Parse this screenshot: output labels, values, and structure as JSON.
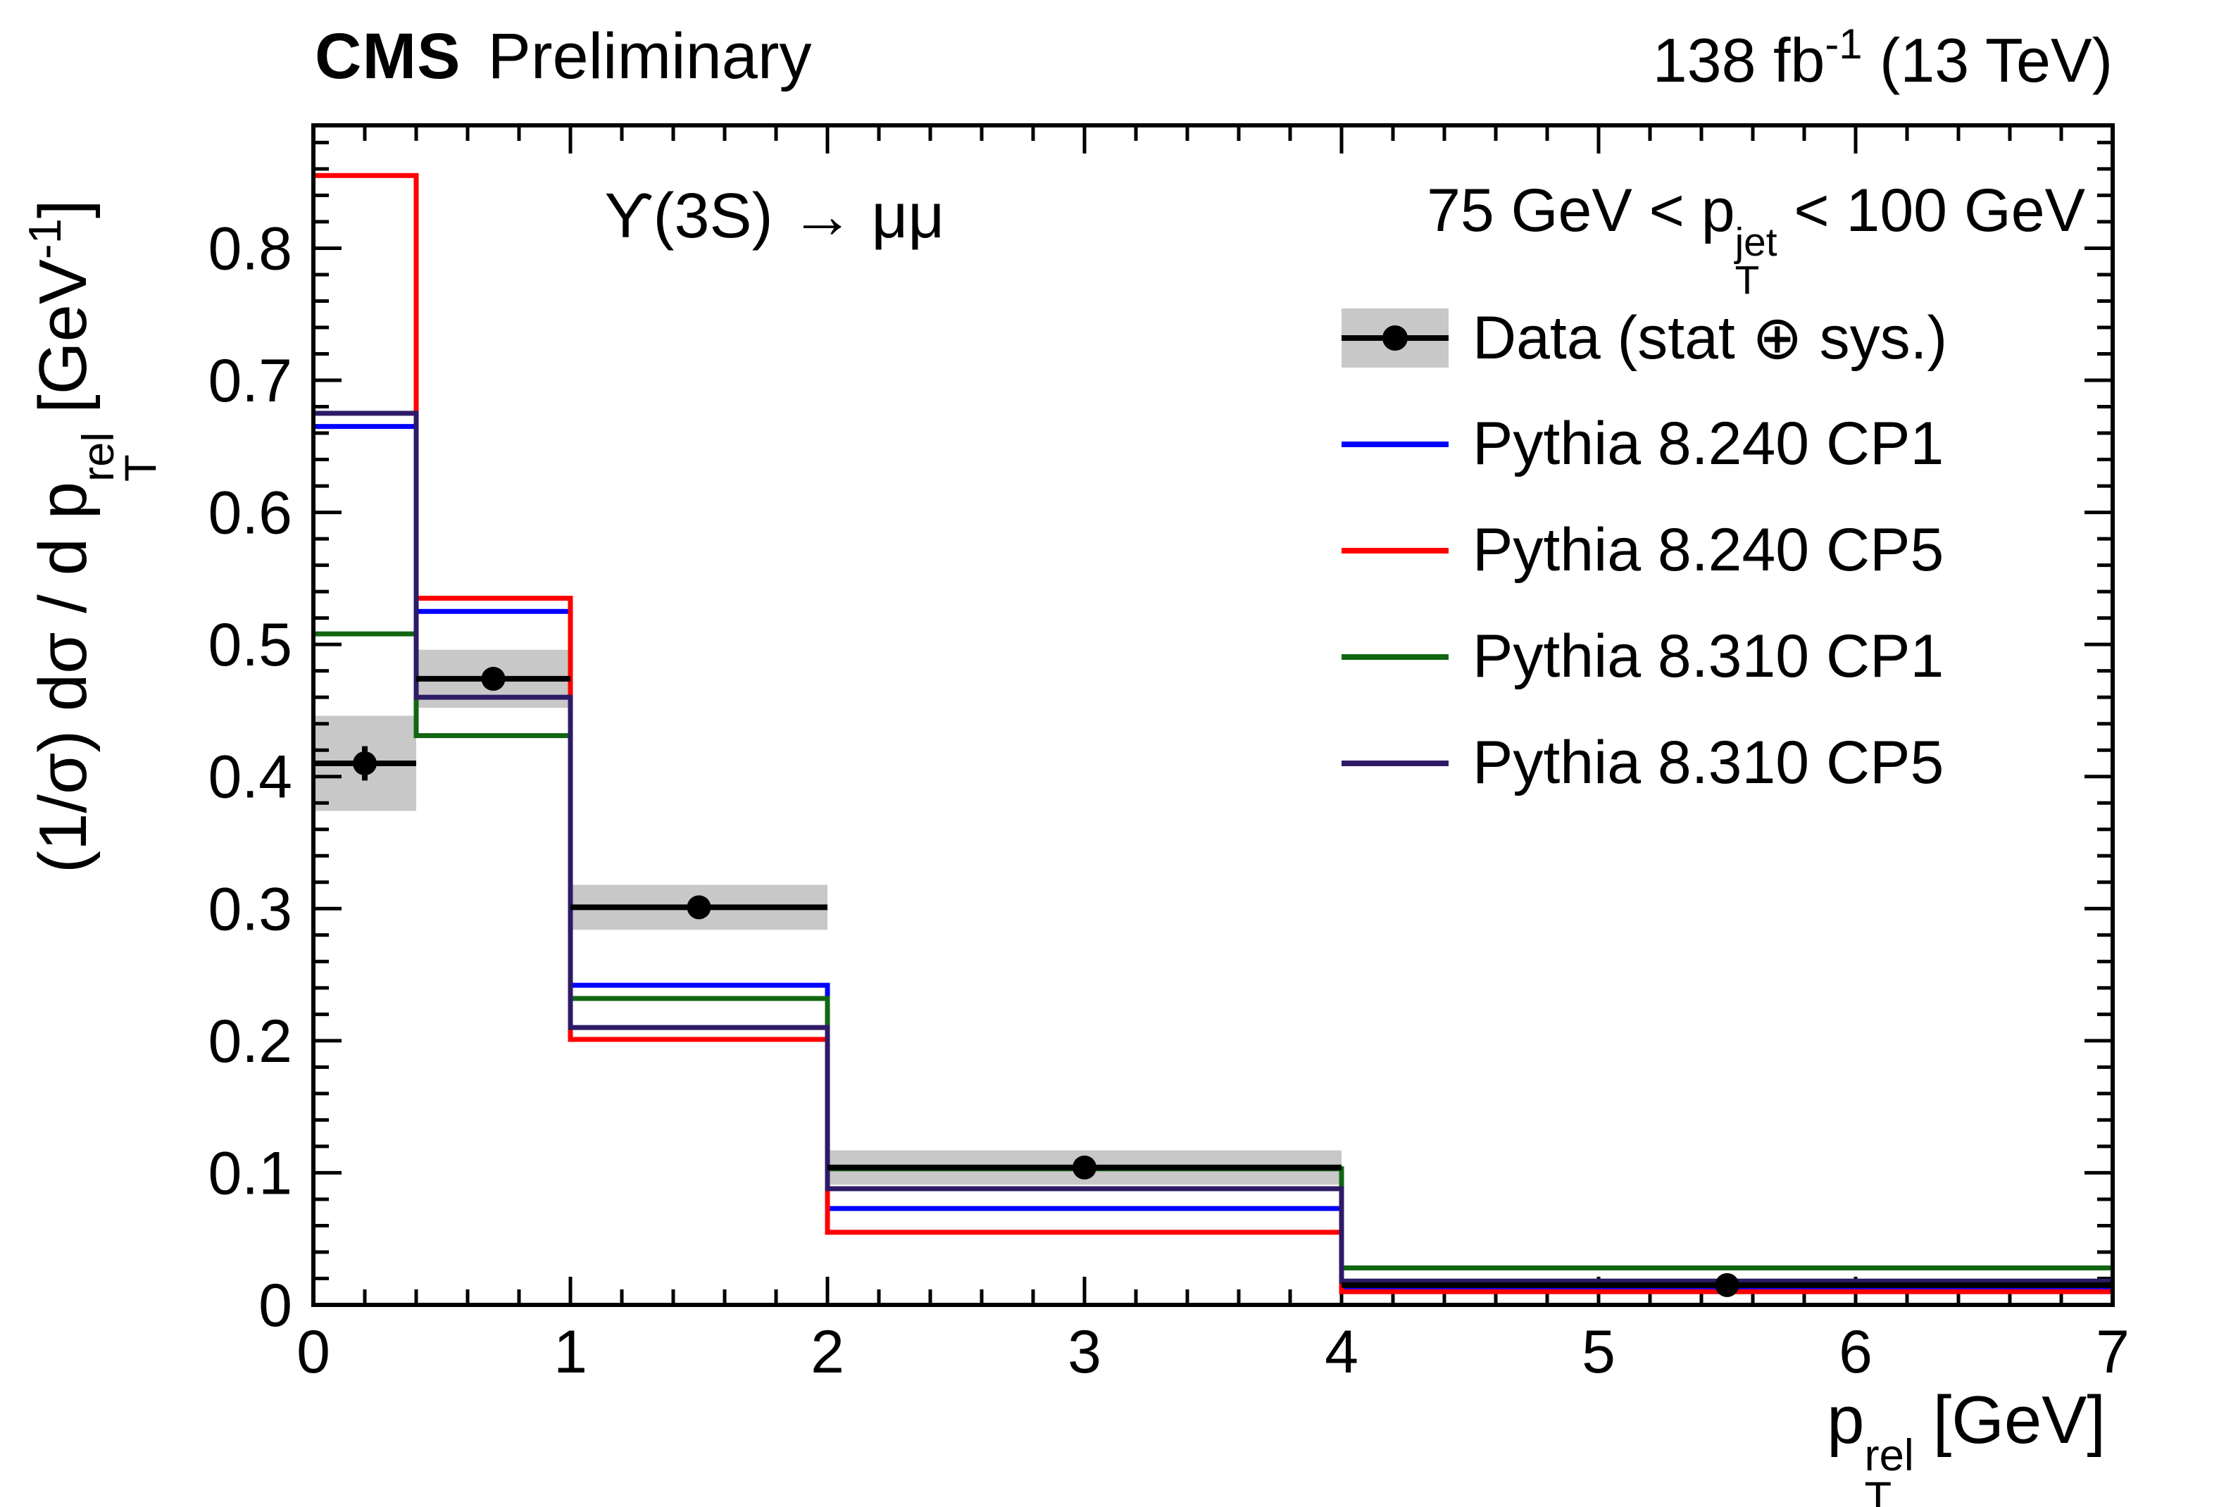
{
  "header": {
    "experiment": "CMS",
    "label": "Preliminary",
    "lumi_pre": "138 fb",
    "lumi_sup": "-1",
    "lumi_post": " (13 TeV)"
  },
  "annotations": {
    "decay": "ϒ(3S) → μμ",
    "jet_pre": "75 GeV < p",
    "jet_sup": "jet",
    "jet_sub": "T",
    "jet_post": " < 100 GeV"
  },
  "legend": {
    "items": [
      {
        "label": "Data (stat ⊕ sys.)",
        "type": "data",
        "color": "#000000",
        "band_color": "#c8c8c8"
      },
      {
        "label": "Pythia 8.240 CP1",
        "type": "line",
        "color": "#0000ff"
      },
      {
        "label": "Pythia 8.240 CP5",
        "type": "line",
        "color": "#ff0000"
      },
      {
        "label": "Pythia 8.310 CP1",
        "type": "line",
        "color": "#116611"
      },
      {
        "label": "Pythia 8.310 CP5",
        "type": "line",
        "color": "#2e1a66"
      }
    ]
  },
  "axes": {
    "x_pre": "p",
    "x_sup": "rel",
    "x_sub": "T",
    "x_post": " [GeV]",
    "y_pre": "(1/σ) dσ / d p",
    "y_sup": "rel",
    "y_sub": "T",
    "y_mid": " [GeV",
    "y_exp": "-1",
    "y_end": "]"
  },
  "chart_data": {
    "type": "line",
    "style": "step-histogram",
    "title": "",
    "xlabel": "pT^rel [GeV]",
    "ylabel": "(1/sigma) dsigma / d pT^rel [GeV^-1]",
    "xlim": [
      0,
      7
    ],
    "ylim": [
      0,
      0.893
    ],
    "xticks": [
      0,
      1,
      2,
      3,
      4,
      5,
      6,
      7
    ],
    "yticks": [
      0,
      0.1,
      0.2,
      0.3,
      0.4,
      0.5,
      0.6,
      0.7,
      0.8
    ],
    "x_minor_step": 0.2,
    "y_minor_step": 0.02,
    "grid": false,
    "legend_position": "top-right",
    "bin_edges": [
      0,
      0.4,
      1,
      2,
      4,
      7
    ],
    "band_color": "#c8c8c8",
    "data_series": {
      "name": "Data (stat ⊕ sys.)",
      "x": [
        0.2,
        0.7,
        1.5,
        3.0,
        5.5
      ],
      "y": [
        0.41,
        0.474,
        0.301,
        0.104,
        0.015
      ],
      "stat_err": [
        0.013,
        0.008,
        0.006,
        0.004,
        0.002
      ],
      "sys_band": [
        0.036,
        0.022,
        0.017,
        0.013,
        0.005
      ]
    },
    "mc_series": [
      {
        "name": "Pythia 8.240 CP1",
        "color": "#0000ff",
        "values": [
          0.665,
          0.525,
          0.242,
          0.073,
          0.013
        ]
      },
      {
        "name": "Pythia 8.240 CP5",
        "color": "#ff0000",
        "values": [
          0.855,
          0.535,
          0.201,
          0.055,
          0.01
        ]
      },
      {
        "name": "Pythia 8.310 CP1",
        "color": "#116611",
        "values": [
          0.508,
          0.431,
          0.232,
          0.103,
          0.028
        ]
      },
      {
        "name": "Pythia 8.310 CP5",
        "color": "#2e1a66",
        "values": [
          0.675,
          0.46,
          0.21,
          0.088,
          0.018
        ]
      }
    ]
  }
}
